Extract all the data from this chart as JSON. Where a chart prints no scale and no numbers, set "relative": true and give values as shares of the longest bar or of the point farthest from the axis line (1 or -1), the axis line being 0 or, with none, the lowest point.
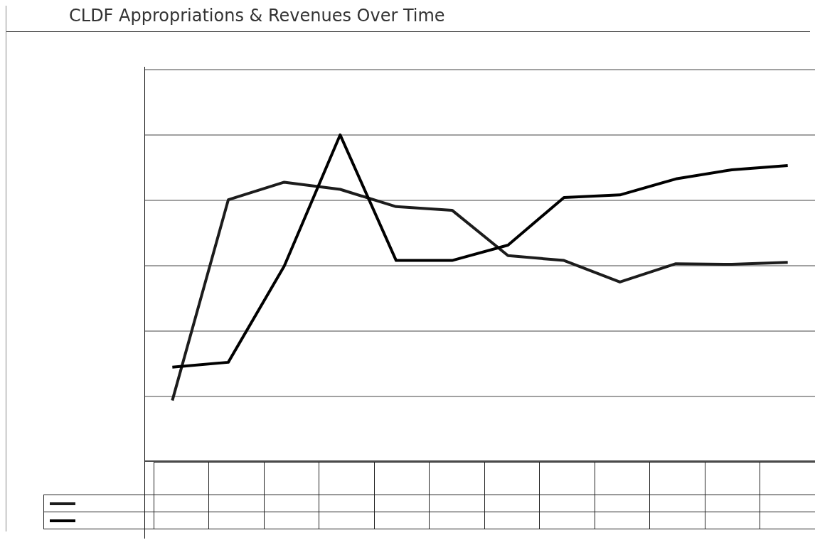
{
  "chart_data": {
    "type": "line",
    "title": "CLDF Appropriations & Revenues Over Time",
    "categories": [
      null,
      null,
      null,
      null,
      null,
      null,
      null,
      null,
      null,
      null,
      null,
      null
    ],
    "relative": true,
    "grid": "y",
    "series": [
      {
        "color": "#1c1c1c",
        "values": [
          0.186,
          0.801,
          0.855,
          0.833,
          0.78,
          0.769,
          0.63,
          0.615,
          0.549,
          0.605,
          0.603,
          0.609
        ]
      },
      {
        "color": "#000000",
        "values": [
          0.288,
          0.303,
          0.598,
          1,
          0.615,
          0.615,
          0.662,
          0.808,
          0.816,
          0.865,
          0.893,
          0.906
        ]
      }
    ]
  }
}
